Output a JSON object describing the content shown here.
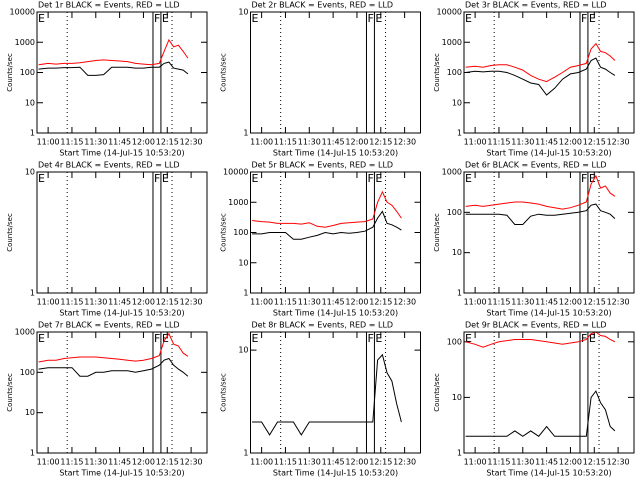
{
  "chart_data": [
    {
      "type": "line",
      "title": "Det 1r BLACK = Events, RED = LLD",
      "ylabel": "Counts/sec",
      "xlabel": "Start Time (14-Jul-15 10:53:20)",
      "log_y": true,
      "ylim": [
        1,
        10000
      ],
      "yticks": [
        1,
        10,
        100,
        1000,
        10000
      ],
      "xlim": [
        "10:53",
        "12:40"
      ],
      "xticks": [
        "11:00",
        "11:15",
        "11:30",
        "11:45",
        "12:00",
        "12:15",
        "12:30"
      ],
      "markers": [
        {
          "x": "10:53",
          "label": "E",
          "style": "none"
        },
        {
          "x": "11:12",
          "style": "dotted"
        },
        {
          "x": "12:06",
          "label": "F",
          "style": "solid"
        },
        {
          "x": "12:11",
          "label": "E",
          "style": "solid"
        },
        {
          "x": "12:18",
          "style": "dotted"
        }
      ],
      "x": [
        "10:54",
        "11:00",
        "11:05",
        "11:10",
        "11:15",
        "11:20",
        "11:25",
        "11:30",
        "11:35",
        "11:40",
        "11:45",
        "11:50",
        "11:55",
        "12:00",
        "12:05",
        "12:10",
        "12:13",
        "12:16",
        "12:19",
        "12:22",
        "12:25",
        "12:28"
      ],
      "series": [
        {
          "name": "Events",
          "color": "#000000",
          "values": [
            130,
            140,
            140,
            145,
            145,
            150,
            80,
            80,
            85,
            150,
            150,
            150,
            140,
            140,
            150,
            150,
            200,
            220,
            140,
            130,
            120,
            90
          ]
        },
        {
          "name": "LLD",
          "color": "#ff0000",
          "values": [
            180,
            200,
            190,
            200,
            200,
            210,
            230,
            250,
            260,
            250,
            240,
            230,
            200,
            190,
            180,
            200,
            500,
            1200,
            700,
            800,
            500,
            300
          ]
        }
      ]
    },
    {
      "type": "line",
      "title": "Det 2r BLACK = Events, RED = LLD",
      "ylabel": "Counts/sec",
      "xlabel": "Start Time (14-Jul-15 10:53:20)",
      "log_y": true,
      "ylim": [
        1,
        10
      ],
      "yticks": [
        1,
        10
      ],
      "xlim": [
        "10:53",
        "12:40"
      ],
      "xticks": [
        "11:00",
        "11:15",
        "11:30",
        "11:45",
        "12:00",
        "12:15",
        "12:30"
      ],
      "markers": [
        {
          "x": "10:53",
          "label": "E",
          "style": "none"
        },
        {
          "x": "11:12",
          "style": "dotted"
        },
        {
          "x": "12:06",
          "label": "F",
          "style": "solid"
        },
        {
          "x": "12:11",
          "label": "E",
          "style": "solid"
        },
        {
          "x": "12:18",
          "style": "dotted"
        }
      ],
      "x": [],
      "series": []
    },
    {
      "type": "line",
      "title": "Det 3r BLACK = Events, RED = LLD",
      "ylabel": "Counts/sec",
      "xlabel": "Start Time (14-Jul-15 10:53:20)",
      "log_y": true,
      "ylim": [
        1,
        10000
      ],
      "yticks": [
        1,
        10,
        100,
        1000,
        10000
      ],
      "xlim": [
        "10:53",
        "12:40"
      ],
      "xticks": [
        "11:00",
        "11:15",
        "11:30",
        "11:45",
        "12:00",
        "12:15",
        "12:30"
      ],
      "markers": [
        {
          "x": "10:53",
          "label": "E",
          "style": "none"
        },
        {
          "x": "11:12",
          "style": "dotted"
        },
        {
          "x": "12:06",
          "label": "F",
          "style": "solid"
        },
        {
          "x": "12:11",
          "label": "E",
          "style": "solid"
        },
        {
          "x": "12:18",
          "style": "dotted"
        }
      ],
      "x": [
        "10:54",
        "11:00",
        "11:05",
        "11:10",
        "11:15",
        "11:20",
        "11:25",
        "11:30",
        "11:35",
        "11:40",
        "11:45",
        "11:50",
        "11:55",
        "12:00",
        "12:05",
        "12:10",
        "12:13",
        "12:16",
        "12:19",
        "12:22",
        "12:25",
        "12:28"
      ],
      "series": [
        {
          "name": "Events",
          "color": "#000000",
          "values": [
            100,
            110,
            105,
            110,
            110,
            100,
            80,
            60,
            45,
            40,
            18,
            30,
            60,
            90,
            100,
            130,
            250,
            300,
            150,
            130,
            100,
            80
          ]
        },
        {
          "name": "LLD",
          "color": "#ff0000",
          "values": [
            150,
            160,
            150,
            170,
            180,
            180,
            150,
            120,
            80,
            60,
            50,
            70,
            100,
            150,
            170,
            200,
            600,
            900,
            500,
            450,
            350,
            250
          ]
        }
      ]
    },
    {
      "type": "line",
      "title": "Det 4r BLACK = Events, RED = LLD",
      "ylabel": "Counts/sec",
      "xlabel": "Start Time (14-Jul-15 10:53:20)",
      "log_y": true,
      "ylim": [
        1,
        10
      ],
      "yticks": [
        1,
        10
      ],
      "xlim": [
        "10:53",
        "12:40"
      ],
      "xticks": [
        "11:00",
        "11:15",
        "11:30",
        "11:45",
        "12:00",
        "12:15",
        "12:30"
      ],
      "markers": [
        {
          "x": "10:53",
          "label": "E",
          "style": "none"
        },
        {
          "x": "11:12",
          "style": "dotted"
        },
        {
          "x": "12:06",
          "label": "F",
          "style": "solid"
        },
        {
          "x": "12:11",
          "label": "E",
          "style": "solid"
        },
        {
          "x": "12:18",
          "style": "dotted"
        }
      ],
      "x": [],
      "series": []
    },
    {
      "type": "line",
      "title": "Det 5r BLACK = Events, RED = LLD",
      "ylabel": "Counts/sec",
      "xlabel": "Start Time (14-Jul-15 10:53:20)",
      "log_y": true,
      "ylim": [
        1,
        10000
      ],
      "yticks": [
        1,
        10,
        100,
        1000,
        10000
      ],
      "xlim": [
        "10:53",
        "12:40"
      ],
      "xticks": [
        "11:00",
        "11:15",
        "11:30",
        "11:45",
        "12:00",
        "12:15",
        "12:30"
      ],
      "markers": [
        {
          "x": "10:53",
          "label": "E",
          "style": "none"
        },
        {
          "x": "11:12",
          "style": "dotted"
        },
        {
          "x": "12:06",
          "label": "F",
          "style": "solid"
        },
        {
          "x": "12:11",
          "label": "E",
          "style": "solid"
        },
        {
          "x": "12:18",
          "style": "dotted"
        }
      ],
      "x": [
        "10:54",
        "11:00",
        "11:05",
        "11:10",
        "11:15",
        "11:20",
        "11:25",
        "11:30",
        "11:35",
        "11:40",
        "11:45",
        "11:50",
        "11:55",
        "12:00",
        "12:05",
        "12:10",
        "12:13",
        "12:16",
        "12:19",
        "12:22",
        "12:25",
        "12:28"
      ],
      "series": [
        {
          "name": "Events",
          "color": "#000000",
          "values": [
            90,
            90,
            100,
            100,
            100,
            60,
            60,
            70,
            80,
            100,
            90,
            100,
            95,
            100,
            110,
            150,
            300,
            500,
            200,
            180,
            150,
            120
          ]
        },
        {
          "name": "LLD",
          "color": "#ff0000",
          "values": [
            250,
            230,
            220,
            200,
            200,
            200,
            190,
            210,
            160,
            150,
            170,
            200,
            210,
            220,
            230,
            280,
            1000,
            2200,
            1000,
            800,
            500,
            300
          ]
        }
      ]
    },
    {
      "type": "line",
      "title": "Det 6r BLACK = Events, RED = LLD",
      "ylabel": "Counts/sec",
      "xlabel": "Start Time (14-Jul-15 10:53:20)",
      "log_y": true,
      "ylim": [
        1,
        1000
      ],
      "yticks": [
        1,
        10,
        100,
        1000
      ],
      "xlim": [
        "10:53",
        "12:40"
      ],
      "xticks": [
        "11:00",
        "11:15",
        "11:30",
        "11:45",
        "12:00",
        "12:15",
        "12:30"
      ],
      "markers": [
        {
          "x": "10:53",
          "label": "E",
          "style": "none"
        },
        {
          "x": "11:12",
          "style": "dotted"
        },
        {
          "x": "12:06",
          "label": "F",
          "style": "solid"
        },
        {
          "x": "12:11",
          "label": "E",
          "style": "solid"
        },
        {
          "x": "12:18",
          "style": "dotted"
        }
      ],
      "x": [
        "10:54",
        "11:00",
        "11:05",
        "11:10",
        "11:15",
        "11:20",
        "11:25",
        "11:30",
        "11:35",
        "11:40",
        "11:45",
        "11:50",
        "11:55",
        "12:00",
        "12:05",
        "12:10",
        "12:13",
        "12:16",
        "12:19",
        "12:22",
        "12:25",
        "12:28"
      ],
      "series": [
        {
          "name": "Events",
          "color": "#000000",
          "values": [
            90,
            90,
            90,
            90,
            90,
            85,
            50,
            50,
            80,
            90,
            85,
            85,
            90,
            95,
            100,
            110,
            150,
            160,
            110,
            100,
            90,
            70
          ]
        },
        {
          "name": "LLD",
          "color": "#ff0000",
          "values": [
            140,
            150,
            140,
            150,
            160,
            170,
            180,
            180,
            170,
            160,
            140,
            130,
            120,
            130,
            150,
            180,
            500,
            800,
            400,
            450,
            300,
            250
          ]
        }
      ]
    },
    {
      "type": "line",
      "title": "Det 7r BLACK = Events, RED = LLD",
      "ylabel": "Counts/sec",
      "xlabel": "Start Time (14-Jul-15 10:53:20)",
      "log_y": true,
      "ylim": [
        1,
        1000
      ],
      "yticks": [
        1,
        10,
        100,
        1000
      ],
      "xlim": [
        "10:53",
        "12:40"
      ],
      "xticks": [
        "11:00",
        "11:15",
        "11:30",
        "11:45",
        "12:00",
        "12:15",
        "12:30"
      ],
      "markers": [
        {
          "x": "10:53",
          "label": "E",
          "style": "none"
        },
        {
          "x": "11:12",
          "style": "dotted"
        },
        {
          "x": "12:06",
          "label": "F",
          "style": "solid"
        },
        {
          "x": "12:11",
          "label": "E",
          "style": "solid"
        },
        {
          "x": "12:18",
          "style": "dotted"
        }
      ],
      "x": [
        "10:54",
        "11:00",
        "11:05",
        "11:10",
        "11:15",
        "11:20",
        "11:25",
        "11:30",
        "11:35",
        "11:40",
        "11:45",
        "11:50",
        "11:55",
        "12:00",
        "12:05",
        "12:10",
        "12:13",
        "12:16",
        "12:19",
        "12:22",
        "12:25",
        "12:28"
      ],
      "series": [
        {
          "name": "Events",
          "color": "#000000",
          "values": [
            120,
            130,
            130,
            130,
            130,
            80,
            80,
            100,
            100,
            110,
            110,
            110,
            100,
            110,
            120,
            150,
            200,
            220,
            150,
            120,
            100,
            80
          ]
        },
        {
          "name": "LLD",
          "color": "#ff0000",
          "values": [
            180,
            200,
            200,
            220,
            230,
            240,
            240,
            240,
            230,
            220,
            210,
            200,
            190,
            200,
            220,
            260,
            600,
            900,
            500,
            450,
            300,
            250
          ]
        }
      ]
    },
    {
      "type": "line",
      "title": "Det 8r BLACK = Events, RED = LLD",
      "ylabel": "Counts/sec",
      "xlabel": "Start Time (14-Jul-15 10:53:20)",
      "log_y": true,
      "ylim": [
        1,
        15
      ],
      "yticks": [
        1,
        10
      ],
      "xlim": [
        "10:53",
        "12:40"
      ],
      "xticks": [
        "11:00",
        "11:15",
        "11:30",
        "11:45",
        "12:00",
        "12:15",
        "12:30"
      ],
      "markers": [
        {
          "x": "10:53",
          "label": "E",
          "style": "none"
        },
        {
          "x": "11:12",
          "style": "dotted"
        },
        {
          "x": "12:06",
          "label": "F",
          "style": "solid"
        },
        {
          "x": "12:11",
          "label": "E",
          "style": "solid"
        },
        {
          "x": "12:18",
          "style": "dotted"
        }
      ],
      "x": [
        "10:54",
        "11:00",
        "11:05",
        "11:10",
        "11:15",
        "11:20",
        "11:25",
        "11:30",
        "11:35",
        "11:40",
        "11:45",
        "11:50",
        "11:55",
        "12:00",
        "12:05",
        "12:10",
        "12:13",
        "12:16",
        "12:19",
        "12:22",
        "12:25",
        "12:28"
      ],
      "series": [
        {
          "name": "Events",
          "color": "#000000",
          "values": [
            2,
            2,
            1.5,
            2,
            2,
            2,
            1.5,
            2,
            2,
            2,
            2,
            2,
            2,
            2,
            2,
            2,
            8,
            9,
            6,
            5,
            3,
            2
          ]
        }
      ]
    },
    {
      "type": "line",
      "title": "Det 9r BLACK = Events, RED = LLD",
      "ylabel": "Counts/sec",
      "xlabel": "Start Time (14-Jul-15 10:53:20)",
      "log_y": true,
      "ylim": [
        1,
        150
      ],
      "yticks": [
        1,
        10,
        100
      ],
      "xlim": [
        "10:53",
        "12:40"
      ],
      "xticks": [
        "11:00",
        "11:15",
        "11:30",
        "11:45",
        "12:00",
        "12:15",
        "12:30"
      ],
      "markers": [
        {
          "x": "10:53",
          "label": "E",
          "style": "none"
        },
        {
          "x": "11:12",
          "style": "dotted"
        },
        {
          "x": "12:06",
          "label": "F",
          "style": "solid"
        },
        {
          "x": "12:11",
          "label": "E",
          "style": "solid"
        },
        {
          "x": "12:18",
          "style": "dotted"
        }
      ],
      "x": [
        "10:54",
        "11:00",
        "11:05",
        "11:10",
        "11:15",
        "11:20",
        "11:25",
        "11:30",
        "11:35",
        "11:40",
        "11:45",
        "11:50",
        "11:55",
        "12:00",
        "12:05",
        "12:10",
        "12:13",
        "12:16",
        "12:19",
        "12:22",
        "12:25",
        "12:28"
      ],
      "series": [
        {
          "name": "Events",
          "color": "#000000",
          "values": [
            2,
            2,
            2,
            2,
            2,
            2,
            2.5,
            2,
            2.5,
            2,
            3,
            2,
            2,
            2,
            2,
            2,
            10,
            13,
            8,
            6,
            3,
            2.5
          ]
        },
        {
          "name": "LLD",
          "color": "#ff0000",
          "values": [
            100,
            90,
            80,
            90,
            100,
            105,
            110,
            110,
            110,
            105,
            100,
            95,
            90,
            95,
            100,
            110,
            140,
            150,
            130,
            125,
            110,
            100
          ]
        }
      ]
    }
  ]
}
